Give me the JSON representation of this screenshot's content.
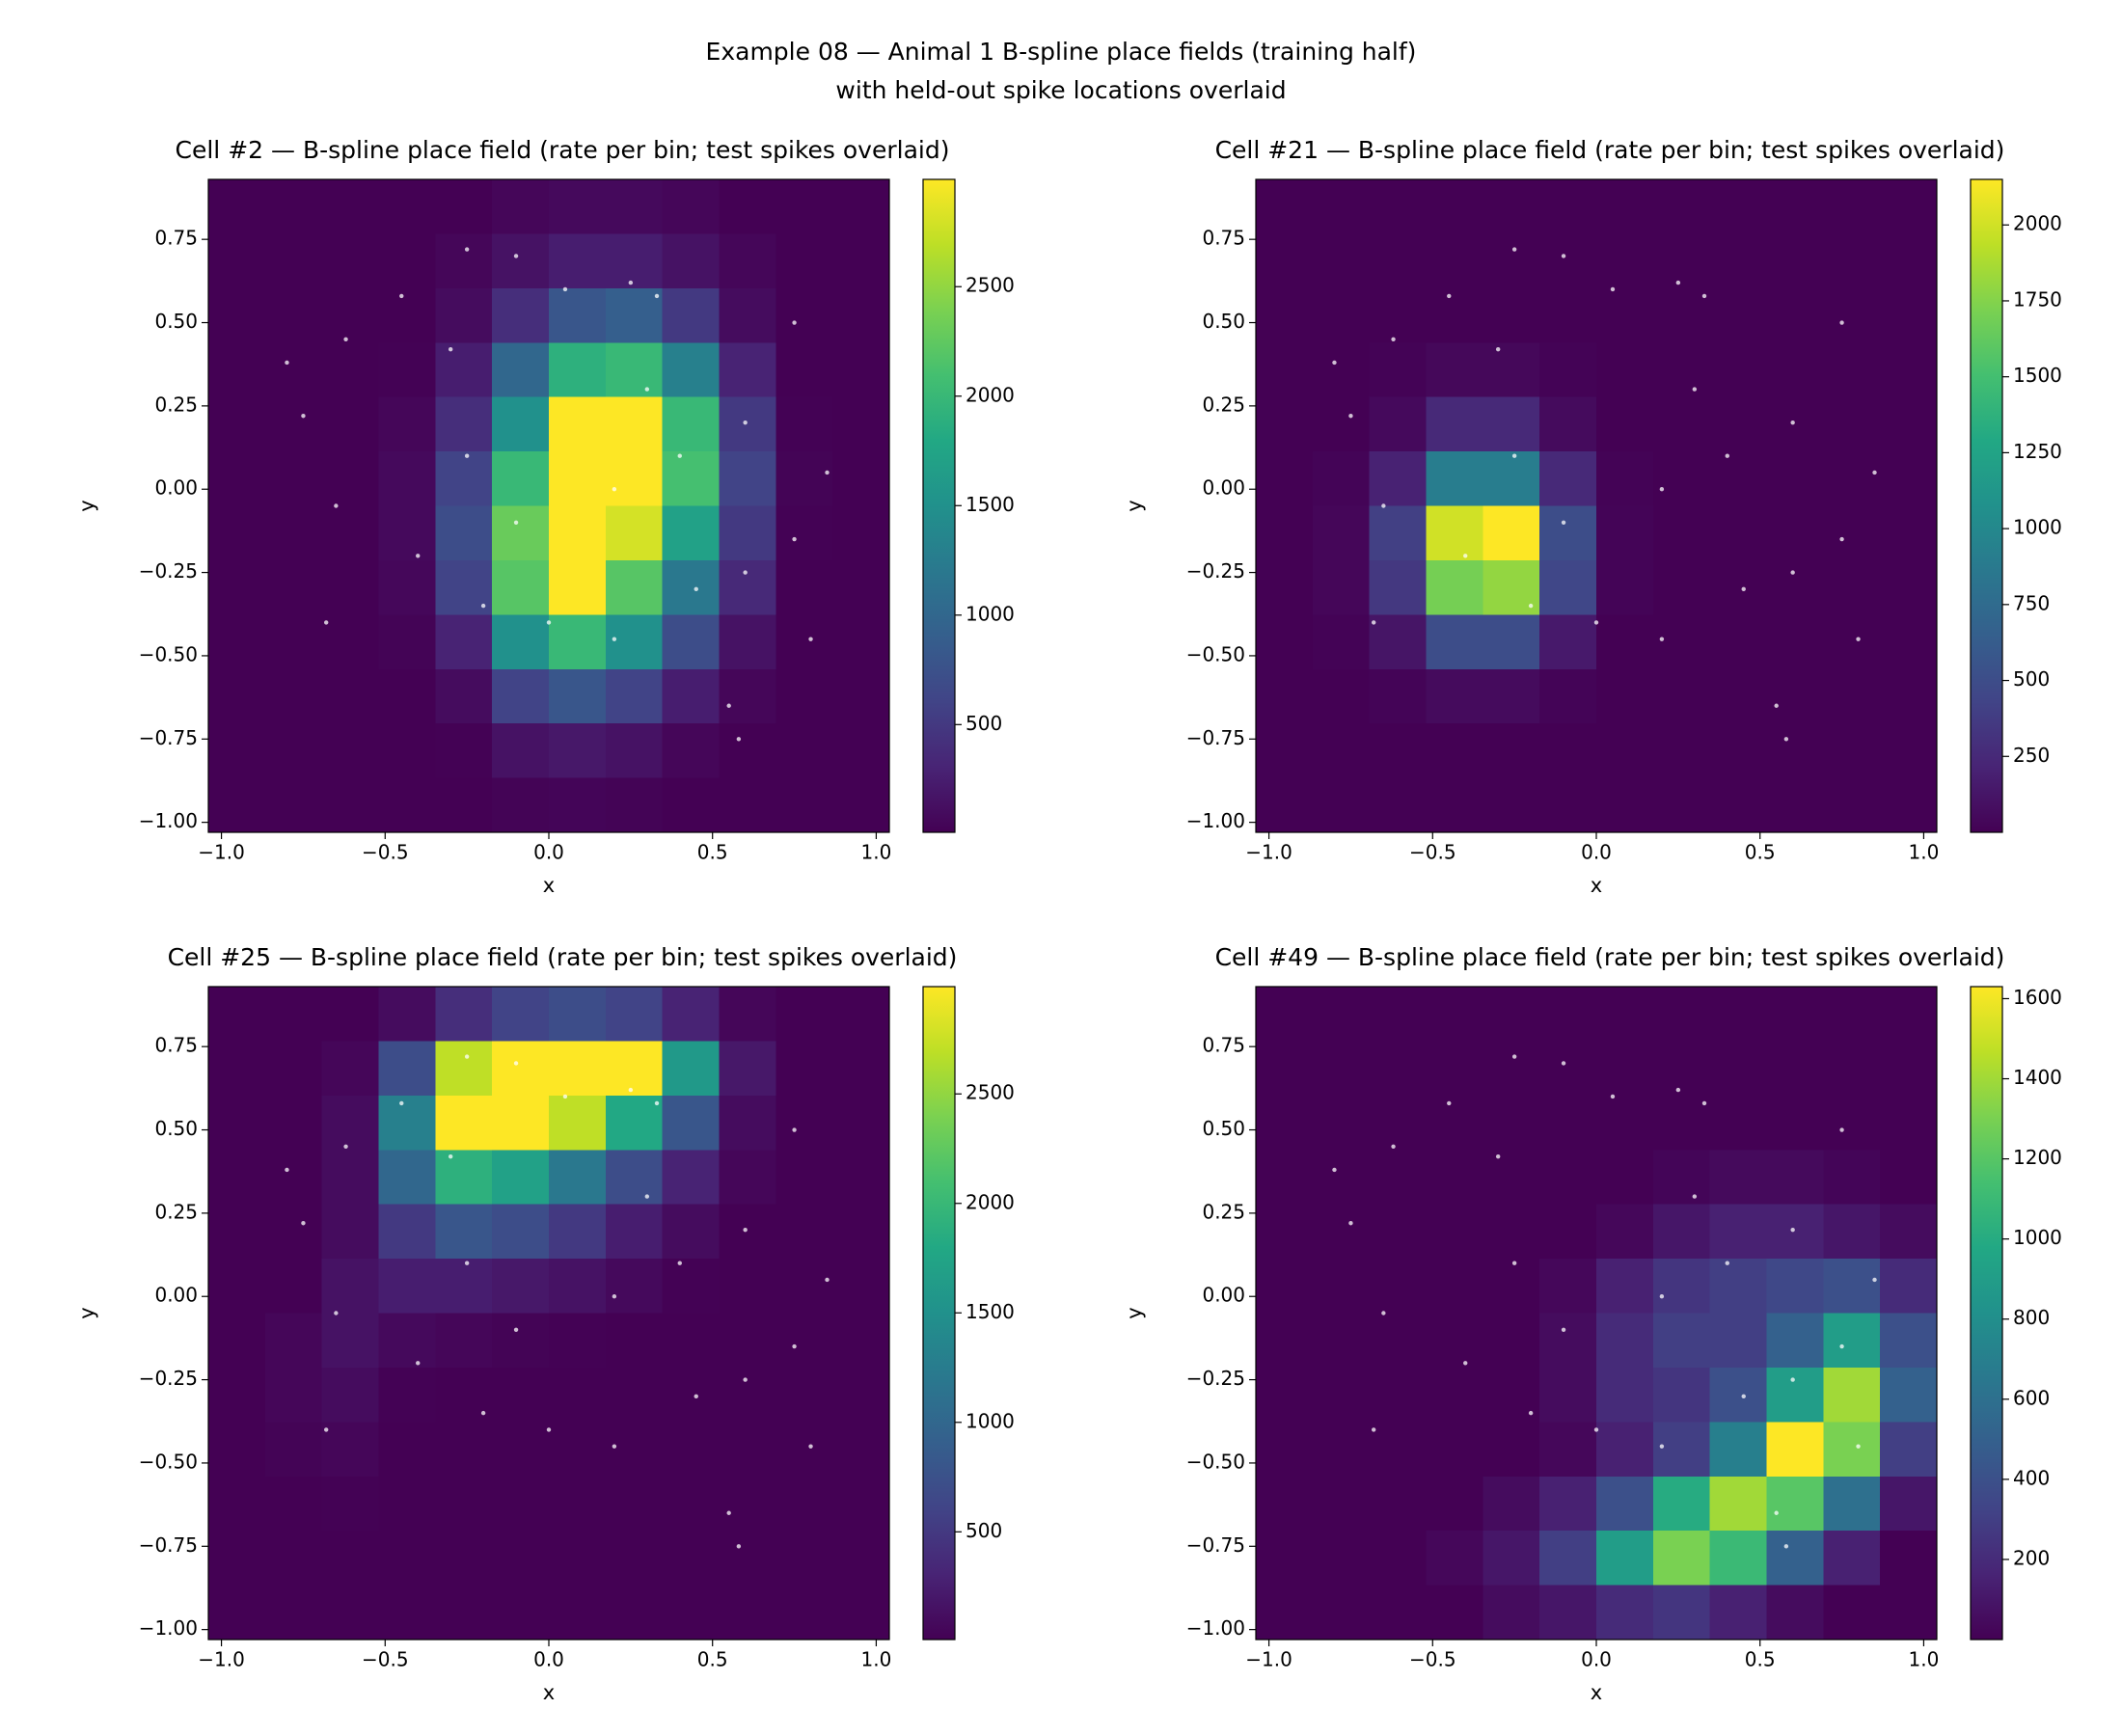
{
  "title": "Example 08 — Animal 1 B-spline place fields (training half)",
  "subtitle": "with held-out spike locations overlaid",
  "chart_data": [
    {
      "type": "heatmap",
      "title": "Cell #2 — B-spline place field (rate per bin; test spikes overlaid)",
      "xlabel": "x",
      "ylabel": "y",
      "xlim": [
        -1.04,
        1.04
      ],
      "ylim": [
        -1.03,
        0.93
      ],
      "xticks": [
        {
          "value": -1,
          "label": "−1.0"
        },
        {
          "value": -0.5,
          "label": "−0.5"
        },
        {
          "value": 0,
          "label": "0.0"
        },
        0.5,
        {
          "value": 1,
          "label": "1.0"
        }
      ],
      "yticks": [
        {
          "value": -1,
          "label": "−1.00"
        },
        {
          "value": -0.75,
          "label": "−0.75"
        },
        {
          "value": -0.5,
          "label": "−0.50"
        },
        {
          "value": -0.25,
          "label": "−0.25"
        },
        {
          "value": 0,
          "label": "0.00"
        },
        0.25,
        {
          "value": 0.5,
          "label": "0.50"
        },
        0.75
      ],
      "colormap": "viridis",
      "clim": [
        8,
        2990
      ],
      "cticks": [
        500,
        1000,
        1500,
        2000,
        2500
      ],
      "z": [
        [
          0,
          0,
          0,
          0,
          0,
          50,
          80,
          80,
          50,
          0,
          0,
          0
        ],
        [
          0,
          0,
          0,
          0,
          50,
          150,
          250,
          250,
          150,
          50,
          0,
          0
        ],
        [
          0,
          0,
          0,
          0,
          100,
          400,
          800,
          900,
          500,
          100,
          0,
          0
        ],
        [
          0,
          0,
          0,
          20,
          250,
          1000,
          1900,
          2000,
          1300,
          300,
          0,
          0
        ],
        [
          0,
          0,
          0,
          50,
          400,
          1500,
          2990,
          2990,
          2000,
          500,
          20,
          0
        ],
        [
          0,
          0,
          0,
          80,
          600,
          2000,
          2990,
          2990,
          2100,
          600,
          30,
          0
        ],
        [
          0,
          0,
          0,
          80,
          700,
          2300,
          2990,
          2800,
          1700,
          500,
          20,
          0
        ],
        [
          0,
          0,
          0,
          60,
          600,
          2200,
          2990,
          2200,
          1200,
          350,
          0,
          0
        ],
        [
          0,
          0,
          0,
          30,
          300,
          1500,
          2000,
          1500,
          700,
          150,
          0,
          0
        ],
        [
          0,
          0,
          0,
          0,
          100,
          600,
          800,
          600,
          250,
          50,
          0,
          0
        ],
        [
          0,
          0,
          0,
          0,
          20,
          150,
          200,
          150,
          50,
          0,
          0,
          0
        ],
        [
          0,
          0,
          0,
          0,
          0,
          30,
          40,
          30,
          0,
          0,
          0,
          0
        ]
      ],
      "spikes": {
        "color": "#ffffff",
        "x": [
          -0.8,
          -0.75,
          -0.62,
          -0.45,
          -0.25,
          -0.1,
          0.05,
          0.25,
          0.33,
          -0.3,
          -0.65,
          -0.68,
          -0.4,
          -0.2,
          0.0,
          0.2,
          0.45,
          0.6,
          0.75,
          0.8,
          0.55,
          0.58,
          0.85,
          0.6,
          0.4,
          0.2,
          -0.1,
          0.3,
          -0.25,
          0.75
        ],
        "y": [
          0.38,
          0.22,
          0.45,
          0.58,
          0.72,
          0.7,
          0.6,
          0.62,
          0.58,
          0.42,
          -0.05,
          -0.4,
          -0.2,
          -0.35,
          -0.4,
          -0.45,
          -0.3,
          -0.25,
          -0.15,
          -0.45,
          -0.65,
          -0.75,
          0.05,
          0.2,
          0.1,
          0.0,
          -0.1,
          0.3,
          0.1,
          0.5
        ]
      }
    },
    {
      "type": "heatmap",
      "title": "Cell #21 — B-spline place field (rate per bin; test spikes overlaid)",
      "xlabel": "x",
      "ylabel": "y",
      "xlim": [
        -1.04,
        1.04
      ],
      "ylim": [
        -1.03,
        0.93
      ],
      "xticks": [
        {
          "value": -1,
          "label": "−1.0"
        },
        {
          "value": -0.5,
          "label": "−0.5"
        },
        {
          "value": 0,
          "label": "0.0"
        },
        0.5,
        {
          "value": 1,
          "label": "1.0"
        }
      ],
      "yticks": [
        {
          "value": -1,
          "label": "−1.00"
        },
        {
          "value": -0.75,
          "label": "−0.75"
        },
        {
          "value": -0.5,
          "label": "−0.50"
        },
        {
          "value": -0.25,
          "label": "−0.25"
        },
        {
          "value": 0,
          "label": "0.00"
        },
        0.25,
        {
          "value": 0.5,
          "label": "0.50"
        },
        0.75
      ],
      "colormap": "viridis",
      "clim": [
        0,
        2150
      ],
      "cticks": [
        250,
        500,
        750,
        1000,
        1250,
        1500,
        1750,
        2000
      ],
      "z": [
        [
          0,
          0,
          0,
          0,
          0,
          0,
          0,
          0,
          0,
          0,
          0,
          0
        ],
        [
          0,
          0,
          0,
          0,
          0,
          0,
          0,
          0,
          0,
          0,
          0,
          0
        ],
        [
          0,
          0,
          0,
          0,
          0,
          0,
          0,
          0,
          0,
          0,
          0,
          0
        ],
        [
          0,
          0,
          10,
          40,
          40,
          10,
          0,
          0,
          0,
          0,
          0,
          0
        ],
        [
          0,
          0,
          50,
          250,
          250,
          60,
          0,
          0,
          0,
          0,
          0,
          0
        ],
        [
          0,
          20,
          200,
          900,
          900,
          250,
          10,
          0,
          0,
          0,
          0,
          0
        ],
        [
          0,
          30,
          400,
          2000,
          2150,
          500,
          20,
          0,
          0,
          0,
          0,
          0
        ],
        [
          0,
          30,
          350,
          1700,
          1800,
          450,
          20,
          0,
          0,
          0,
          0,
          0
        ],
        [
          0,
          10,
          120,
          500,
          500,
          150,
          0,
          0,
          0,
          0,
          0,
          0
        ],
        [
          0,
          0,
          20,
          60,
          60,
          20,
          0,
          0,
          0,
          0,
          0,
          0
        ],
        [
          0,
          0,
          0,
          0,
          0,
          0,
          0,
          0,
          0,
          0,
          0,
          0
        ],
        [
          0,
          0,
          0,
          0,
          0,
          0,
          0,
          0,
          0,
          0,
          0,
          0
        ]
      ],
      "spikes": {
        "color": "#ffffff",
        "x": [
          -0.8,
          -0.75,
          -0.62,
          -0.45,
          -0.25,
          -0.1,
          0.05,
          0.25,
          0.33,
          -0.3,
          -0.65,
          -0.68,
          -0.4,
          -0.2,
          0.0,
          0.2,
          0.45,
          0.6,
          0.75,
          0.8,
          0.55,
          0.58,
          0.85,
          0.6,
          0.4,
          0.2,
          -0.1,
          0.3,
          -0.25,
          0.75
        ],
        "y": [
          0.38,
          0.22,
          0.45,
          0.58,
          0.72,
          0.7,
          0.6,
          0.62,
          0.58,
          0.42,
          -0.05,
          -0.4,
          -0.2,
          -0.35,
          -0.4,
          -0.45,
          -0.3,
          -0.25,
          -0.15,
          -0.45,
          -0.65,
          -0.75,
          0.05,
          0.2,
          0.1,
          0.0,
          -0.1,
          0.3,
          0.1,
          0.5
        ]
      }
    },
    {
      "type": "heatmap",
      "title": "Cell #25 — B-spline place field (rate per bin; test spikes overlaid)",
      "xlabel": "x",
      "ylabel": "y",
      "xlim": [
        -1.04,
        1.04
      ],
      "ylim": [
        -1.03,
        0.93
      ],
      "xticks": [
        {
          "value": -1,
          "label": "−1.0"
        },
        {
          "value": -0.5,
          "label": "−0.5"
        },
        {
          "value": 0,
          "label": "0.0"
        },
        0.5,
        {
          "value": 1,
          "label": "1.0"
        }
      ],
      "yticks": [
        {
          "value": -1,
          "label": "−1.00"
        },
        {
          "value": -0.75,
          "label": "−0.75"
        },
        {
          "value": -0.5,
          "label": "−0.50"
        },
        {
          "value": -0.25,
          "label": "−0.25"
        },
        {
          "value": 0,
          "label": "0.00"
        },
        0.25,
        {
          "value": 0.5,
          "label": "0.50"
        },
        0.75
      ],
      "colormap": "viridis",
      "clim": [
        8,
        2990
      ],
      "cticks": [
        500,
        1000,
        1500,
        2000,
        2500
      ],
      "z": [
        [
          0,
          0,
          0,
          100,
          400,
          600,
          700,
          600,
          300,
          50,
          0,
          0
        ],
        [
          0,
          0,
          50,
          700,
          2700,
          2990,
          2990,
          2990,
          1600,
          200,
          0,
          0
        ],
        [
          0,
          0,
          100,
          1300,
          2990,
          2990,
          2700,
          1800,
          800,
          100,
          0,
          0
        ],
        [
          0,
          0,
          100,
          1000,
          1900,
          1700,
          1200,
          700,
          300,
          50,
          0,
          0
        ],
        [
          0,
          0,
          100,
          500,
          800,
          700,
          500,
          250,
          100,
          0,
          0,
          0
        ],
        [
          0,
          0,
          150,
          250,
          250,
          200,
          150,
          80,
          20,
          0,
          0,
          0
        ],
        [
          0,
          50,
          150,
          80,
          50,
          30,
          20,
          0,
          0,
          0,
          0,
          0
        ],
        [
          0,
          50,
          100,
          20,
          0,
          0,
          0,
          0,
          0,
          0,
          0,
          0
        ],
        [
          0,
          30,
          50,
          0,
          0,
          0,
          0,
          0,
          0,
          0,
          0,
          0
        ],
        [
          0,
          10,
          20,
          0,
          0,
          0,
          0,
          0,
          0,
          0,
          0,
          0
        ],
        [
          0,
          0,
          0,
          0,
          0,
          0,
          0,
          0,
          0,
          0,
          0,
          0
        ],
        [
          0,
          0,
          0,
          0,
          0,
          0,
          0,
          0,
          0,
          0,
          0,
          0
        ]
      ],
      "spikes": {
        "color": "#ffffff",
        "x": [
          -0.8,
          -0.75,
          -0.62,
          -0.45,
          -0.25,
          -0.1,
          0.05,
          0.25,
          0.33,
          -0.3,
          -0.65,
          -0.68,
          -0.4,
          -0.2,
          0.0,
          0.2,
          0.45,
          0.6,
          0.75,
          0.8,
          0.55,
          0.58,
          0.85,
          0.6,
          0.4,
          0.2,
          -0.1,
          0.3,
          -0.25,
          0.75
        ],
        "y": [
          0.38,
          0.22,
          0.45,
          0.58,
          0.72,
          0.7,
          0.6,
          0.62,
          0.58,
          0.42,
          -0.05,
          -0.4,
          -0.2,
          -0.35,
          -0.4,
          -0.45,
          -0.3,
          -0.25,
          -0.15,
          -0.45,
          -0.65,
          -0.75,
          0.05,
          0.2,
          0.1,
          0.0,
          -0.1,
          0.3,
          0.1,
          0.5
        ]
      }
    },
    {
      "type": "heatmap",
      "title": "Cell #49 — B-spline place field (rate per bin; test spikes overlaid)",
      "xlabel": "x",
      "ylabel": "y",
      "xlim": [
        -1.04,
        1.04
      ],
      "ylim": [
        -1.03,
        0.93
      ],
      "xticks": [
        {
          "value": -1,
          "label": "−1.0"
        },
        {
          "value": -0.5,
          "label": "−0.5"
        },
        {
          "value": 0,
          "label": "0.0"
        },
        0.5,
        {
          "value": 1,
          "label": "1.0"
        }
      ],
      "yticks": [
        {
          "value": -1,
          "label": "−1.00"
        },
        {
          "value": -0.75,
          "label": "−0.75"
        },
        {
          "value": -0.5,
          "label": "−0.50"
        },
        {
          "value": -0.25,
          "label": "−0.25"
        },
        {
          "value": 0,
          "label": "0.00"
        },
        0.25,
        {
          "value": 0.5,
          "label": "0.50"
        },
        0.75
      ],
      "colormap": "viridis",
      "clim": [
        0,
        1630
      ],
      "cticks": [
        200,
        400,
        600,
        800,
        1000,
        1200,
        1400,
        1600
      ],
      "z": [
        [
          0,
          0,
          0,
          0,
          0,
          0,
          0,
          0,
          0,
          0,
          0,
          0
        ],
        [
          0,
          0,
          0,
          0,
          0,
          0,
          0,
          0,
          0,
          0,
          0,
          0
        ],
        [
          0,
          0,
          0,
          0,
          0,
          0,
          0,
          0,
          0,
          0,
          0,
          0
        ],
        [
          0,
          0,
          0,
          0,
          0,
          0,
          0,
          20,
          40,
          40,
          20,
          0
        ],
        [
          0,
          0,
          0,
          0,
          0,
          0,
          30,
          100,
          150,
          150,
          100,
          50
        ],
        [
          0,
          0,
          0,
          0,
          0,
          30,
          150,
          250,
          300,
          350,
          400,
          200
        ],
        [
          0,
          0,
          0,
          0,
          0,
          50,
          200,
          300,
          300,
          500,
          900,
          400
        ],
        [
          0,
          0,
          0,
          0,
          0,
          50,
          200,
          250,
          400,
          900,
          1400,
          500
        ],
        [
          0,
          0,
          0,
          0,
          0,
          30,
          150,
          300,
          700,
          1630,
          1300,
          300
        ],
        [
          0,
          0,
          0,
          0,
          50,
          150,
          400,
          1000,
          1400,
          1200,
          600,
          100
        ],
        [
          0,
          0,
          0,
          30,
          100,
          300,
          900,
          1300,
          1100,
          500,
          150,
          0
        ],
        [
          0,
          0,
          0,
          0,
          50,
          100,
          200,
          250,
          150,
          50,
          0,
          0
        ]
      ],
      "spikes": {
        "color": "#ffffff",
        "x": [
          -0.8,
          -0.75,
          -0.62,
          -0.45,
          -0.25,
          -0.1,
          0.05,
          0.25,
          0.33,
          -0.3,
          -0.65,
          -0.68,
          -0.4,
          -0.2,
          0.0,
          0.2,
          0.45,
          0.6,
          0.75,
          0.8,
          0.55,
          0.58,
          0.85,
          0.6,
          0.4,
          0.2,
          -0.1,
          0.3,
          -0.25,
          0.75
        ],
        "y": [
          0.38,
          0.22,
          0.45,
          0.58,
          0.72,
          0.7,
          0.6,
          0.62,
          0.58,
          0.42,
          -0.05,
          -0.4,
          -0.2,
          -0.35,
          -0.4,
          -0.45,
          -0.3,
          -0.25,
          -0.15,
          -0.45,
          -0.65,
          -0.75,
          0.05,
          0.2,
          0.1,
          0.0,
          -0.1,
          0.3,
          0.1,
          0.5
        ]
      }
    }
  ]
}
